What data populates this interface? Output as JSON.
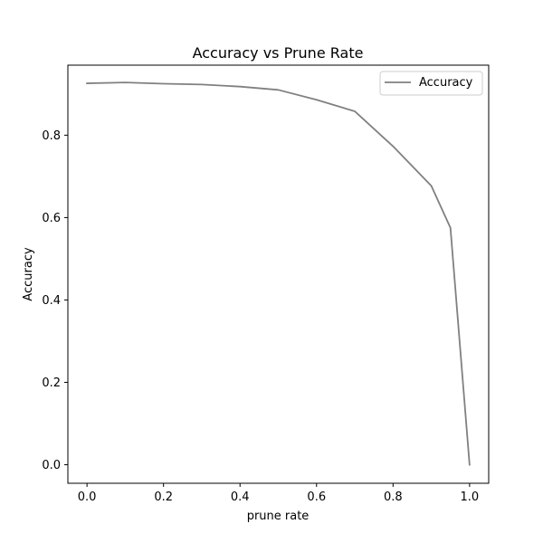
{
  "chart_data": {
    "type": "line",
    "title": "Accuracy vs Prune Rate",
    "xlabel": "prune rate",
    "ylabel": "Accuracy",
    "xlim": [
      -0.05,
      1.05
    ],
    "ylim": [
      -0.045,
      0.97
    ],
    "xticks": [
      "0.0",
      "0.2",
      "0.4",
      "0.6",
      "0.8",
      "1.0"
    ],
    "yticks": [
      "0.0",
      "0.2",
      "0.4",
      "0.6",
      "0.8"
    ],
    "grid": false,
    "legend_position": "top-right",
    "series": [
      {
        "name": "Accuracy",
        "color": "#808080",
        "x": [
          0.0,
          0.1,
          0.2,
          0.3,
          0.4,
          0.5,
          0.6,
          0.7,
          0.8,
          0.9,
          0.95,
          1.0
        ],
        "y": [
          0.926,
          0.928,
          0.925,
          0.923,
          0.918,
          0.91,
          0.886,
          0.858,
          0.773,
          0.677,
          0.575,
          0.0
        ]
      }
    ]
  }
}
